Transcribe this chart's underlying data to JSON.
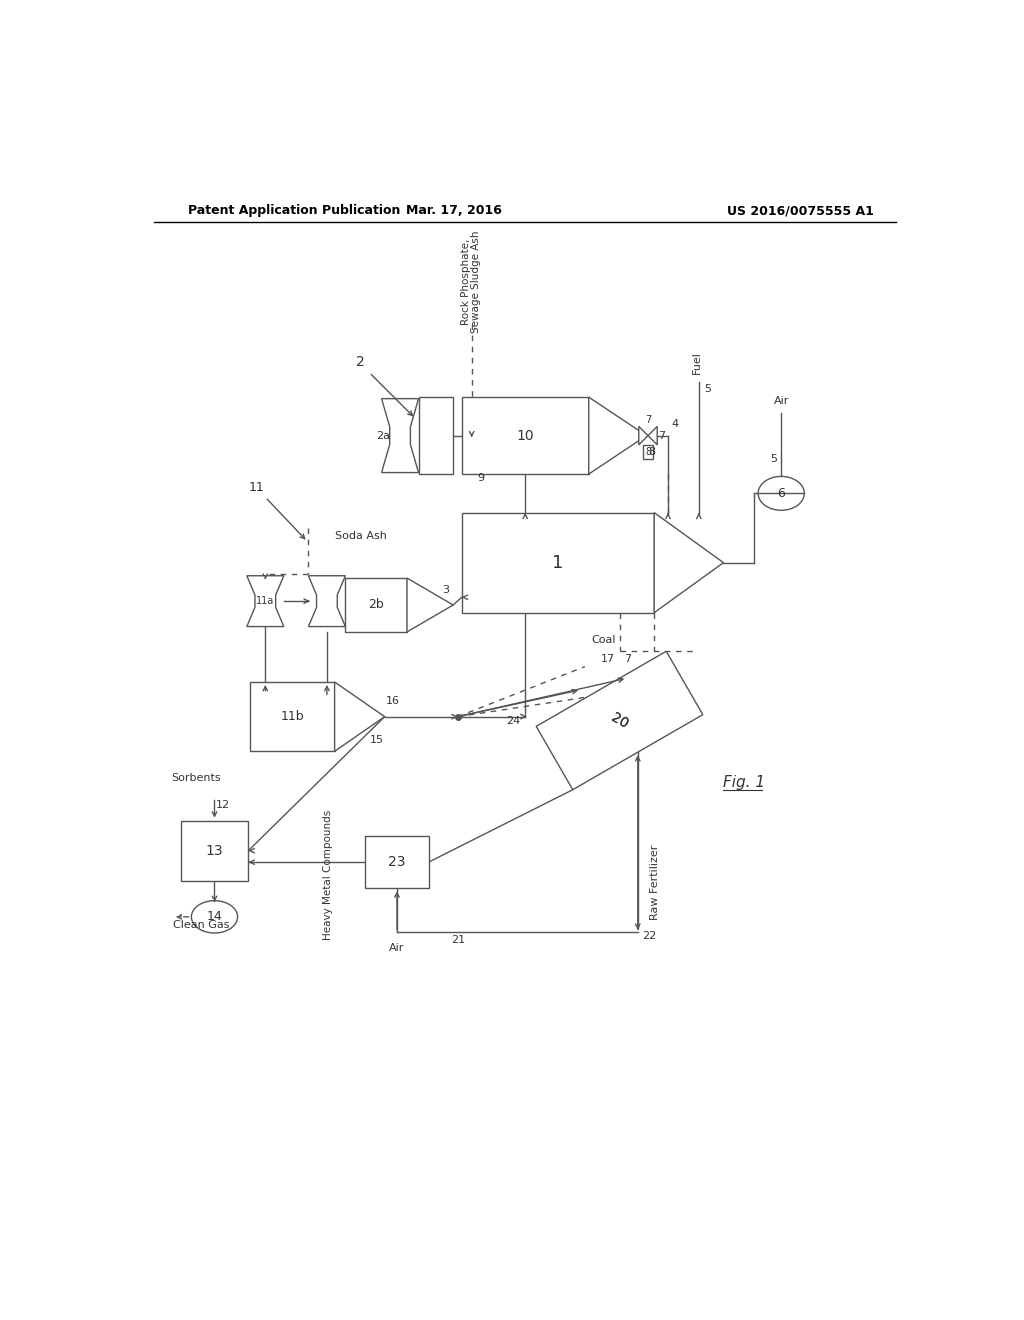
{
  "title_left": "Patent Application Publication",
  "title_mid": "Mar. 17, 2016",
  "title_right": "US 2016/0075555 A1",
  "bg_color": "#ffffff",
  "lc": "#555555",
  "fc": "#333333"
}
